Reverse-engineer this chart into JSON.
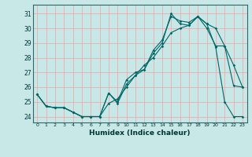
{
  "xlabel": "Humidex (Indice chaleur)",
  "bg_color": "#c8e8e8",
  "line_color": "#006666",
  "grid_color": "#f5a0a0",
  "x_ticks": [
    0,
    1,
    2,
    3,
    4,
    5,
    6,
    7,
    8,
    9,
    10,
    11,
    12,
    13,
    14,
    15,
    16,
    17,
    18,
    19,
    20,
    21,
    22,
    23
  ],
  "y_ticks": [
    24,
    25,
    26,
    27,
    28,
    29,
    30,
    31
  ],
  "ylim": [
    23.6,
    31.6
  ],
  "xlim": [
    -0.5,
    23.5
  ],
  "series1": {
    "x": [
      0,
      1,
      2,
      3,
      4,
      5,
      6,
      7,
      8,
      9,
      10,
      11,
      12,
      13,
      14,
      15,
      16,
      17,
      18,
      19,
      20,
      21,
      22,
      23
    ],
    "y": [
      25.5,
      24.7,
      24.6,
      24.6,
      24.3,
      24.0,
      24.0,
      24.0,
      24.9,
      25.2,
      26.0,
      26.8,
      27.5,
      28.0,
      28.8,
      29.7,
      30.0,
      30.2,
      30.8,
      30.0,
      28.8,
      28.8,
      26.1,
      26.0
    ]
  },
  "series2": {
    "x": [
      0,
      1,
      2,
      3,
      4,
      5,
      6,
      7,
      8,
      9,
      10,
      11,
      12,
      13,
      14,
      15,
      16,
      17,
      18,
      19,
      20,
      21,
      22,
      23
    ],
    "y": [
      25.5,
      24.7,
      24.6,
      24.6,
      24.3,
      24.0,
      24.0,
      24.0,
      25.6,
      25.0,
      26.5,
      27.0,
      27.2,
      28.5,
      29.2,
      30.8,
      30.5,
      30.4,
      30.8,
      30.3,
      30.0,
      28.8,
      27.5,
      26.0
    ]
  },
  "series3": {
    "x": [
      0,
      1,
      2,
      3,
      4,
      5,
      6,
      7,
      8,
      9,
      10,
      11,
      12,
      13,
      14,
      15,
      16,
      17,
      18,
      19,
      20,
      21,
      22,
      23
    ],
    "y": [
      25.5,
      24.7,
      24.6,
      24.6,
      24.3,
      24.0,
      24.0,
      24.0,
      25.6,
      24.9,
      26.2,
      26.8,
      27.2,
      28.3,
      29.0,
      31.0,
      30.3,
      30.2,
      30.8,
      30.3,
      28.7,
      25.0,
      24.0,
      24.0
    ]
  }
}
